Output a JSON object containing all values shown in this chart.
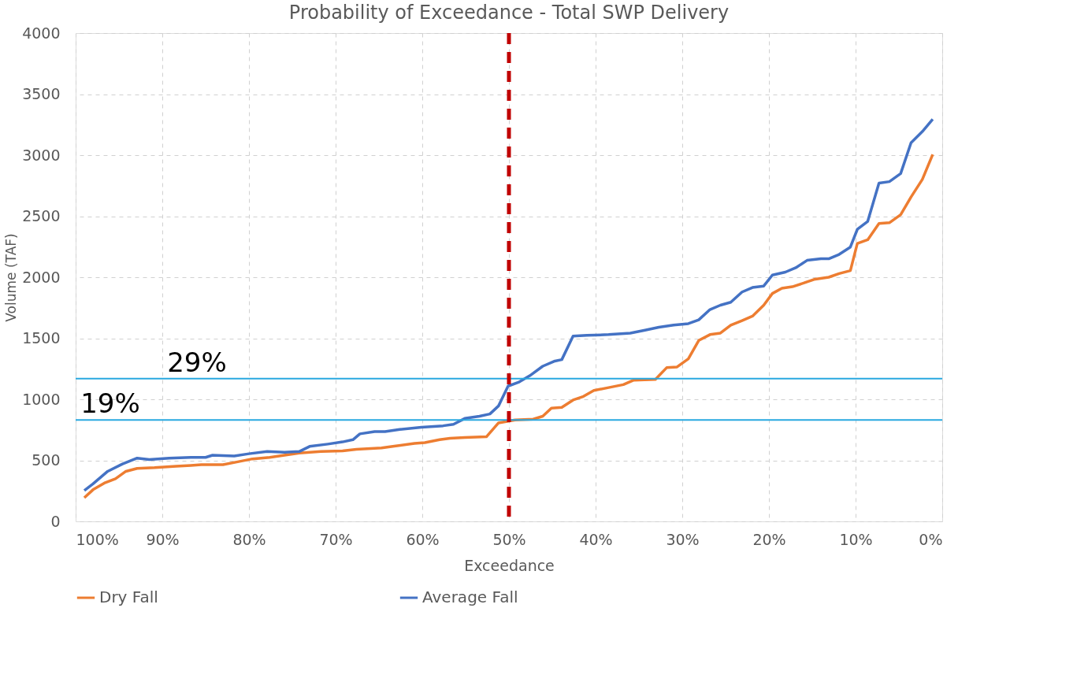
{
  "chart_data": {
    "type": "line",
    "title": "Probability of Exceedance - Total SWP Delivery",
    "xlabel": "Exceedance",
    "ylabel": "Volume (TAF)",
    "xlim": [
      100,
      0
    ],
    "xticks": [
      {
        "value": 100,
        "label": "100%"
      },
      {
        "value": 90,
        "label": "90%"
      },
      {
        "value": 80,
        "label": "80%"
      },
      {
        "value": 70,
        "label": "70%"
      },
      {
        "value": 60,
        "label": "60%"
      },
      {
        "value": 50,
        "label": "50%"
      },
      {
        "value": 40,
        "label": "40%"
      },
      {
        "value": 30,
        "label": "30%"
      },
      {
        "value": 20,
        "label": "20%"
      },
      {
        "value": 10,
        "label": "10%"
      },
      {
        "value": 0,
        "label": "0%"
      }
    ],
    "ylim": [
      0,
      4000
    ],
    "yticks": [
      0,
      500,
      1000,
      1500,
      2000,
      2500,
      3000,
      3500,
      4000
    ],
    "grid": true,
    "legend": "bottom",
    "line_style": "solid",
    "series": [
      {
        "name": "Dry Fall",
        "color": "#ed7d31",
        "x": [
          99,
          98,
          96.7,
          95.4,
          94.2,
          92.9,
          90.9,
          88.4,
          86.7,
          85.5,
          83,
          81.3,
          79.6,
          77.6,
          75.9,
          74.2,
          71.7,
          69.2,
          67.6,
          64.7,
          63.4,
          60.9,
          59.7,
          58,
          56.8,
          55.1,
          52.6,
          51.2,
          49.3,
          47.2,
          46.1,
          45.1,
          43.9,
          42.6,
          41.4,
          40.2,
          38.5,
          36.8,
          35.6,
          33.1,
          31.8,
          30.6,
          29.3,
          28.1,
          26.8,
          25.6,
          24.4,
          23.1,
          21.9,
          20.6,
          19.6,
          18.5,
          17.3,
          16,
          14.8,
          13.1,
          11.9,
          10.6,
          9.8,
          8.6,
          7.3,
          6.1,
          4.8,
          3.6,
          2.3,
          1.1
        ],
        "values": [
          193,
          259,
          313,
          349,
          410,
          434,
          440,
          452,
          458,
          464,
          464,
          488,
          512,
          524,
          542,
          560,
          572,
          578,
          590,
          602,
          614,
          639,
          645,
          669,
          681,
          687,
          693,
          807,
          831,
          837,
          861,
          928,
          934,
          994,
          1024,
          1072,
          1096,
          1120,
          1157,
          1163,
          1259,
          1265,
          1331,
          1482,
          1530,
          1542,
          1608,
          1645,
          1681,
          1771,
          1867,
          1910,
          1922,
          1952,
          1982,
          2000,
          2030,
          2054,
          2277,
          2307,
          2440,
          2446,
          2512,
          2657,
          2801,
          3006
        ]
      },
      {
        "name": "Average Fall",
        "color": "#4472c4",
        "x": [
          99,
          98,
          96.3,
          94.6,
          92.9,
          91.5,
          89.2,
          86.7,
          85,
          84.2,
          81.7,
          80,
          77.9,
          75.9,
          74.2,
          73,
          70.9,
          69.2,
          68,
          67.2,
          65.5,
          64.3,
          62.6,
          60.1,
          57.6,
          56.4,
          55.1,
          53.4,
          52.2,
          51.2,
          50.1,
          48.9,
          47.6,
          46.1,
          44.7,
          43.9,
          42.6,
          41,
          38.5,
          36,
          34.3,
          32.7,
          31,
          29.3,
          28.1,
          26.8,
          25.6,
          24.4,
          23.1,
          21.9,
          20.6,
          19.6,
          18.1,
          16.9,
          15.6,
          14,
          13.1,
          11.9,
          10.6,
          9.8,
          8.6,
          7.3,
          6.1,
          4.8,
          3.6,
          2.3,
          1.1
        ],
        "values": [
          253,
          307,
          410,
          470,
          518,
          506,
          518,
          524,
          524,
          542,
          536,
          554,
          572,
          566,
          572,
          614,
          633,
          651,
          669,
          717,
          735,
          735,
          753,
          771,
          783,
          795,
          843,
          861,
          880,
          946,
          1108,
          1139,
          1193,
          1271,
          1313,
          1325,
          1518,
          1524,
          1530,
          1542,
          1566,
          1590,
          1608,
          1620,
          1651,
          1735,
          1771,
          1795,
          1879,
          1916,
          1928,
          2018,
          2042,
          2078,
          2138,
          2151,
          2151,
          2187,
          2247,
          2392,
          2458,
          2771,
          2783,
          2849,
          3102,
          3193,
          3295
        ]
      }
    ],
    "ref_lines": [
      {
        "axis": "y",
        "value": 1170,
        "color": "#29a8e0",
        "line_style": "solid"
      },
      {
        "axis": "y",
        "value": 830,
        "color": "#29a8e0",
        "line_style": "solid"
      },
      {
        "axis": "x",
        "value": 50,
        "color": "#c00000",
        "line_style": "dashed"
      }
    ],
    "annotations": [
      {
        "text": "29%",
        "x": 86,
        "y": 1170
      },
      {
        "text": "19%",
        "x": 96,
        "y": 830
      }
    ]
  }
}
